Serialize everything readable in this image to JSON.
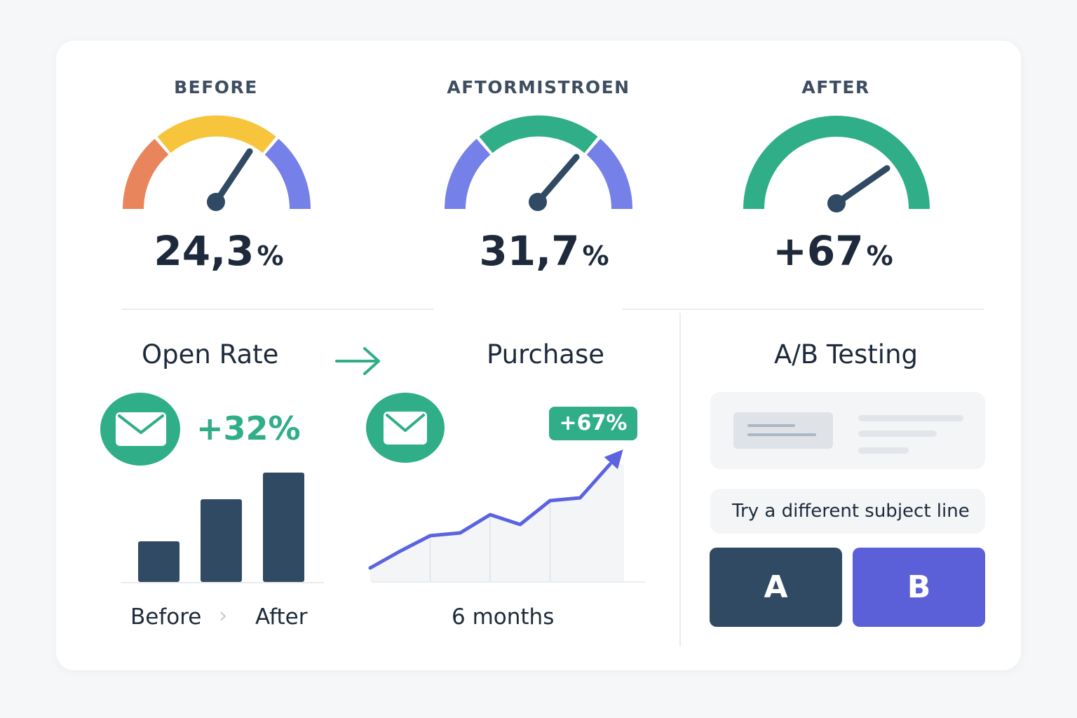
{
  "gauges": [
    {
      "label": "BEFORE",
      "value": "24,3",
      "unit": "%"
    },
    {
      "label": "AFTORMISTROEN",
      "value": "31,7",
      "unit": "%"
    },
    {
      "label": "AFTER",
      "value": "+67",
      "unit": "%"
    }
  ],
  "open_rate": {
    "title": "Open Rate",
    "change": "+32%",
    "axis_before": "Before",
    "axis_after": "After",
    "separator": "›",
    "chart_data": {
      "type": "bar",
      "categories": [
        "",
        "",
        ""
      ],
      "values": [
        58,
        118,
        156
      ]
    }
  },
  "purchase": {
    "title": "Purchase",
    "badge": "+67%",
    "period": "6 months",
    "chart_data": {
      "type": "line",
      "x": [
        0,
        1,
        2,
        3,
        4,
        5,
        6,
        7,
        8
      ],
      "values": [
        10,
        22,
        33,
        35,
        48,
        41,
        58,
        60,
        84
      ]
    }
  },
  "ab_testing": {
    "title": "A/B Testing",
    "hint": "Try a different subject line",
    "option_a": "A",
    "option_b": "B"
  },
  "colors": {
    "green": "#2fae88",
    "navy": "#314a63",
    "indigo": "#5b60d9",
    "yellow": "#f6c53c",
    "orange": "#e8855d",
    "purple": "#7580e8"
  }
}
